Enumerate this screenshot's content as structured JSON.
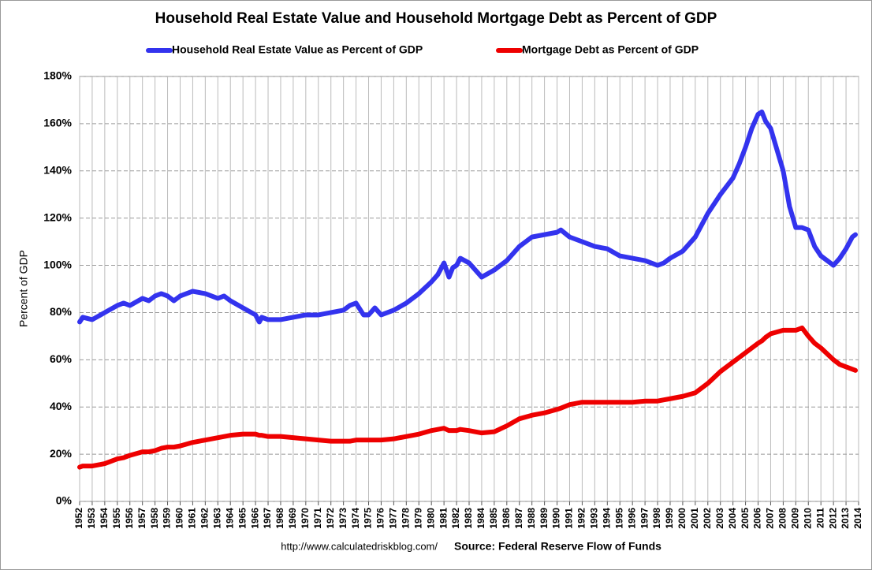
{
  "chart_data": {
    "type": "line",
    "title": "Household Real Estate Value and Household Mortgage Debt as Percent of GDP",
    "y_label": "Percent of GDP",
    "url": "http://www.calculatedriskblog.com/",
    "source": "Source: Federal Reserve Flow of Funds",
    "legend": "top",
    "grid": true,
    "x": [
      1952,
      1952.25,
      1953,
      1954,
      1955,
      1955.5,
      1956,
      1957,
      1957.5,
      1958,
      1958.5,
      1959,
      1959.5,
      1960,
      1961,
      1962,
      1963,
      1963.5,
      1964,
      1965,
      1966,
      1966.3,
      1966.5,
      1967,
      1968,
      1969,
      1970,
      1971,
      1972,
      1973,
      1973.5,
      1974,
      1974.6,
      1975,
      1975.5,
      1976,
      1977,
      1978,
      1979,
      1980,
      1980.5,
      1981,
      1981.4,
      1981.7,
      1982,
      1982.3,
      1983,
      1984,
      1985,
      1986,
      1987,
      1988,
      1989,
      1990,
      1990.3,
      1991,
      1992,
      1993,
      1994,
      1995,
      1996,
      1997,
      1998,
      1998.5,
      1999,
      2000,
      2001,
      2002,
      2003,
      2004,
      2004.5,
      2005,
      2005.5,
      2006,
      2006.3,
      2006.6,
      2007,
      2008,
      2008.5,
      2009,
      2009.5,
      2010,
      2010.5,
      2011,
      2012,
      2012.5,
      2013,
      2013.5,
      2013.75
    ],
    "series": [
      {
        "name": "Household Real Estate Value as Percent of GDP",
        "color": "#3333ee",
        "values": [
          76,
          78,
          77,
          80,
          83,
          84,
          83,
          86,
          85,
          87,
          88,
          87,
          85,
          87,
          89,
          88,
          86,
          87,
          85,
          82,
          79,
          76,
          78,
          77,
          77,
          78,
          79,
          79,
          80,
          81,
          83,
          84,
          79,
          79,
          82,
          79,
          81,
          84,
          88,
          93,
          96,
          101,
          95,
          99,
          100,
          103,
          101,
          95,
          98,
          102,
          108,
          112,
          113,
          114,
          115,
          112,
          110,
          108,
          107,
          104,
          103,
          102,
          100,
          101,
          103,
          106,
          112,
          122,
          130,
          137,
          143,
          150,
          158,
          164,
          165,
          161,
          158,
          140,
          125,
          116,
          116,
          115,
          108,
          104,
          100,
          103,
          107,
          112,
          113
        ]
      },
      {
        "name": "Mortgage Debt as Percent of GDP",
        "color": "#ee0000",
        "values": [
          14.5,
          15,
          15,
          16,
          18,
          18.5,
          19.5,
          21,
          21,
          21.5,
          22.5,
          23,
          23,
          23.5,
          25,
          26,
          27,
          27.5,
          28,
          28.5,
          28.5,
          28,
          28,
          27.5,
          27.5,
          27,
          26.5,
          26,
          25.5,
          25.5,
          25.5,
          26,
          26,
          26,
          26,
          26,
          26.5,
          27.5,
          28.5,
          30,
          30.5,
          31,
          30,
          30,
          30,
          30.5,
          30,
          29,
          29.5,
          32,
          35,
          36.5,
          37.5,
          39,
          39.5,
          41,
          42,
          42,
          42,
          42,
          42,
          42.5,
          42.5,
          43,
          43.5,
          44.5,
          46,
          50,
          55,
          59,
          61,
          63,
          65,
          67,
          68,
          69.5,
          71,
          72.5,
          72.5,
          72.5,
          73.5,
          70,
          67,
          65,
          60,
          58,
          57,
          56,
          55.5
        ]
      }
    ],
    "xlim": [
      1952,
      2014
    ],
    "xticks": [
      1952,
      1953,
      1954,
      1955,
      1956,
      1957,
      1958,
      1959,
      1960,
      1961,
      1962,
      1963,
      1964,
      1965,
      1966,
      1967,
      1968,
      1969,
      1970,
      1971,
      1972,
      1973,
      1974,
      1975,
      1976,
      1977,
      1978,
      1979,
      1980,
      1981,
      1982,
      1983,
      1984,
      1985,
      1986,
      1987,
      1988,
      1989,
      1990,
      1991,
      1992,
      1993,
      1994,
      1995,
      1996,
      1997,
      1998,
      1999,
      2000,
      2001,
      2002,
      2003,
      2004,
      2005,
      2006,
      2007,
      2008,
      2009,
      2010,
      2011,
      2012,
      2013,
      2014
    ],
    "ylim": [
      0,
      180
    ],
    "yticks": [
      {
        "value": 0,
        "label": "0%"
      },
      {
        "value": 20,
        "label": "20%"
      },
      {
        "value": 40,
        "label": "40%"
      },
      {
        "value": 60,
        "label": "60%"
      },
      {
        "value": 80,
        "label": "80%"
      },
      {
        "value": 100,
        "label": "100%"
      },
      {
        "value": 120,
        "label": "120%"
      },
      {
        "value": 140,
        "label": "140%"
      },
      {
        "value": 160,
        "label": "160%"
      },
      {
        "value": 180,
        "label": "180%"
      }
    ]
  }
}
